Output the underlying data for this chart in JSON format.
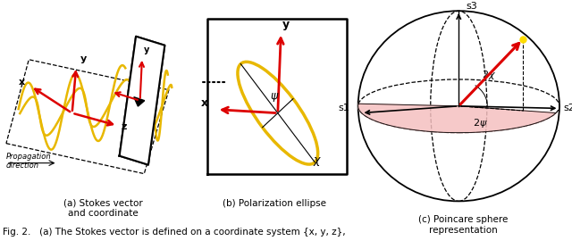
{
  "fig_width": 6.4,
  "fig_height": 2.7,
  "dpi": 100,
  "bg_color": "#ffffff",
  "caption_a": "(a) Stokes vector\nand coordinate",
  "caption_b": "(b) Polarization ellipse",
  "caption_c": "(c) Poincare sphere\nrepresentation",
  "fig_caption": "Fig. 2.   (a) The Stokes vector is defined on a coordinate system {x, y, z},",
  "red_color": "#dd0000",
  "gold_color": "#e8b800",
  "black_color": "#000000",
  "pink_color": "#f5c0c0",
  "yellow_dot": "#ffdd00"
}
